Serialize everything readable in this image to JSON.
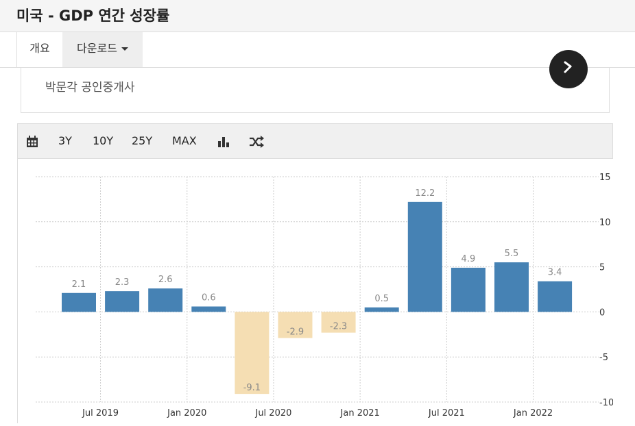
{
  "page": {
    "title": "미국 - GDP 연간 성장률"
  },
  "tabs": {
    "overview": "개요",
    "download": "다운로드"
  },
  "promo": {
    "text": "박문각 공인중개사"
  },
  "toolbar": {
    "btn_3y": "3Y",
    "btn_10y": "10Y",
    "btn_25y": "25Y",
    "btn_max": "MAX"
  },
  "colors": {
    "positive": "#4682b4",
    "negative": "#f5deb3",
    "label": "#888888",
    "grid": "#cccccc"
  },
  "chart_data": {
    "type": "bar",
    "categories": [
      "2019 Q2",
      "2019 Q3",
      "2019 Q4",
      "2020 Q1",
      "2020 Q2",
      "2020 Q3",
      "2020 Q4",
      "2021 Q1",
      "2021 Q2",
      "2021 Q3",
      "2021 Q4",
      "2022 Q1"
    ],
    "values": [
      2.1,
      2.3,
      2.6,
      0.6,
      -9.1,
      -2.9,
      -2.3,
      0.5,
      12.2,
      4.9,
      5.5,
      3.4
    ],
    "data_labels": [
      "2.1",
      "2.3",
      "2.6",
      "0.6",
      "-9.1",
      "-2.9",
      "-2.3",
      "0.5",
      "12.2",
      "4.9",
      "5.5",
      "3.4"
    ],
    "x_tick_labels": [
      "Jul 2019",
      "Jan 2020",
      "Jul 2020",
      "Jan 2021",
      "Jul 2021",
      "Jan 2022"
    ],
    "y_ticks": [
      15,
      10,
      5,
      0,
      -5,
      -10
    ],
    "ylim": [
      -10,
      15
    ],
    "grid": true,
    "y_axis_position": "right"
  }
}
